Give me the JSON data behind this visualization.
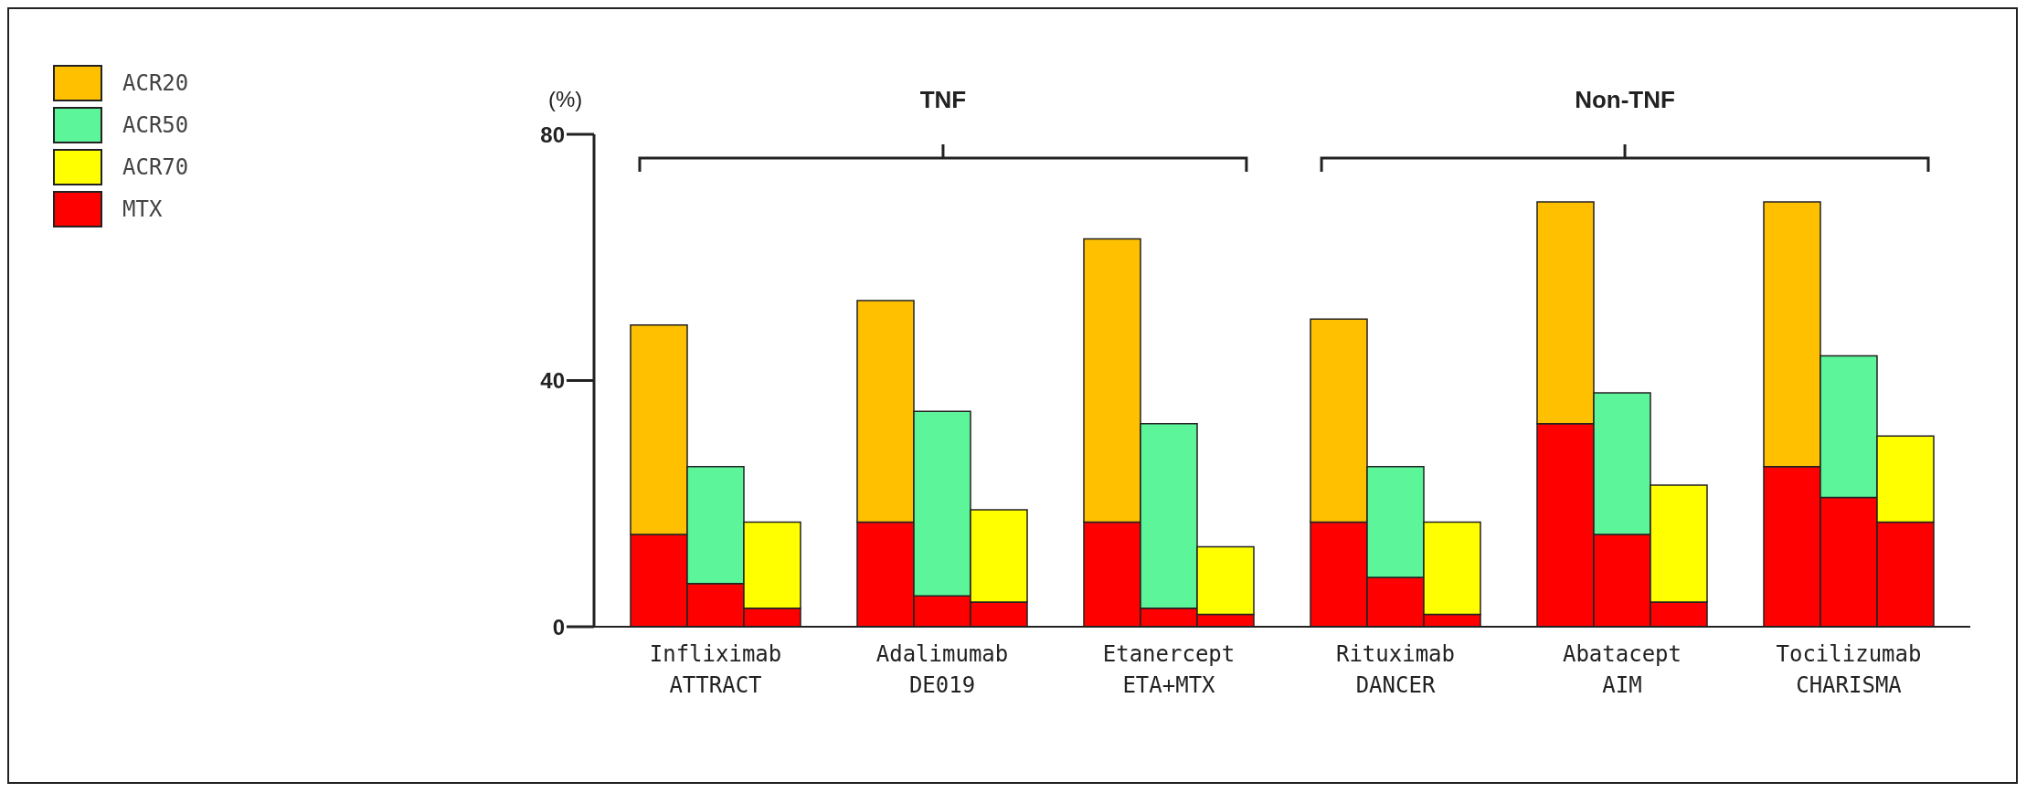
{
  "chart_data": {
    "type": "bar",
    "stacked": true,
    "ylabel": "(%)",
    "legend": "top left",
    "categories": [
      null,
      "Infliximab\nATTRACT",
      null,
      null,
      null,
      "Adalimumab\nDE019",
      null,
      null,
      null,
      "Etanercept\nETA+MTX",
      null,
      null,
      null,
      "Rituximab\nDANCER",
      null,
      null,
      null,
      "Abatacept\nAIM",
      null,
      null,
      null,
      "Tocilizumab\nCHARISMA",
      null
    ],
    "ylim": [
      0,
      80
    ],
    "yticks": [
      0,
      40,
      80
    ],
    "annotations": [
      "TNF",
      "Non-TNF"
    ],
    "series": [
      {
        "name": "MTX",
        "color": "#ff0000",
        "values": [
          15,
          7,
          3,
          null,
          17,
          5,
          4,
          null,
          17,
          3,
          2,
          null,
          17,
          8,
          2,
          null,
          33,
          15,
          4,
          null,
          26,
          21,
          17
        ]
      },
      {
        "name": "ACR20",
        "color": "#ffc000",
        "values": [
          34,
          null,
          null,
          null,
          36,
          null,
          null,
          null,
          46,
          null,
          null,
          null,
          33,
          null,
          null,
          null,
          36,
          null,
          null,
          null,
          43,
          null,
          null
        ]
      },
      {
        "name": "ACR50",
        "color": "#5cf59a",
        "values": [
          null,
          19,
          null,
          null,
          null,
          30,
          null,
          null,
          null,
          30,
          null,
          null,
          null,
          18,
          null,
          null,
          null,
          23,
          null,
          null,
          null,
          23,
          null
        ]
      },
      {
        "name": "ACR70",
        "color": "#ffff00",
        "values": [
          null,
          null,
          14,
          null,
          null,
          null,
          15,
          null,
          null,
          null,
          11,
          null,
          null,
          null,
          15,
          null,
          null,
          null,
          19,
          null,
          null,
          null,
          14
        ]
      }
    ]
  }
}
